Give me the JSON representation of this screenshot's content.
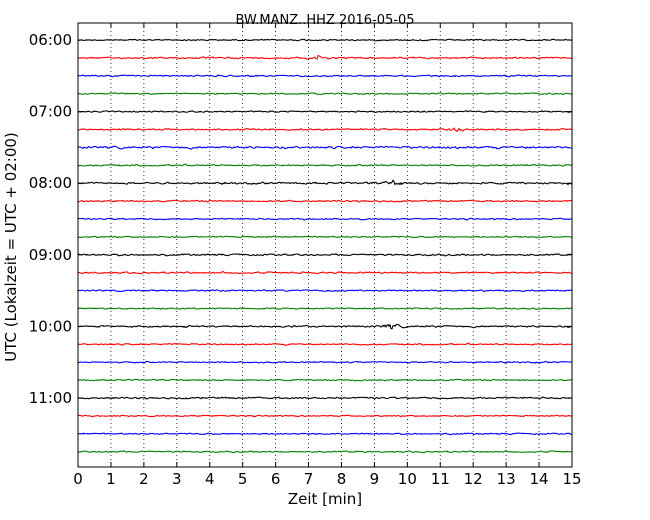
{
  "chart_data": {
    "type": "line",
    "title": "BW.MANZ..HHZ 2016-05-05",
    "xlabel": "Zeit  [min]",
    "ylabel": "UTC (Lokalzeit = UTC + 02:00)",
    "xlim": [
      0,
      15
    ],
    "x_ticks": [
      "0",
      "1",
      "2",
      "3",
      "4",
      "5",
      "6",
      "7",
      "8",
      "9",
      "10",
      "11",
      "12",
      "13",
      "14",
      "15"
    ],
    "y_ticks": [
      "06:00",
      "07:00",
      "08:00",
      "09:00",
      "10:00",
      "11:00"
    ],
    "grid": "vertical dotted",
    "trace_interval_min": 15,
    "trace_colors": [
      "#000000",
      "#ff0000",
      "#0000ff",
      "#008000"
    ],
    "traces": [
      {
        "start": "06:00",
        "amplitude": 0.9
      },
      {
        "start": "06:15",
        "amplitude": 1.0,
        "event_at_min": 7.2
      },
      {
        "start": "06:30",
        "amplitude": 1.0
      },
      {
        "start": "06:45",
        "amplitude": 0.9
      },
      {
        "start": "07:00",
        "amplitude": 0.9
      },
      {
        "start": "07:15",
        "amplitude": 1.0,
        "event_at_min": 11.5
      },
      {
        "start": "07:30",
        "amplitude": 1.4
      },
      {
        "start": "07:45",
        "amplitude": 1.0
      },
      {
        "start": "08:00",
        "amplitude": 1.2,
        "event_at_min": 9.6
      },
      {
        "start": "08:15",
        "amplitude": 1.0
      },
      {
        "start": "08:30",
        "amplitude": 0.9
      },
      {
        "start": "08:45",
        "amplitude": 0.9
      },
      {
        "start": "09:00",
        "amplitude": 1.1
      },
      {
        "start": "09:15",
        "amplitude": 1.0
      },
      {
        "start": "09:30",
        "amplitude": 1.0
      },
      {
        "start": "09:45",
        "amplitude": 0.9
      },
      {
        "start": "10:00",
        "amplitude": 1.1,
        "event_at_min": 9.5
      },
      {
        "start": "10:15",
        "amplitude": 0.9
      },
      {
        "start": "10:30",
        "amplitude": 0.9
      },
      {
        "start": "10:45",
        "amplitude": 0.9
      },
      {
        "start": "11:00",
        "amplitude": 1.1
      },
      {
        "start": "11:15",
        "amplitude": 0.8
      },
      {
        "start": "11:30",
        "amplitude": 0.9
      },
      {
        "start": "11:45",
        "amplitude": 0.9
      }
    ]
  }
}
